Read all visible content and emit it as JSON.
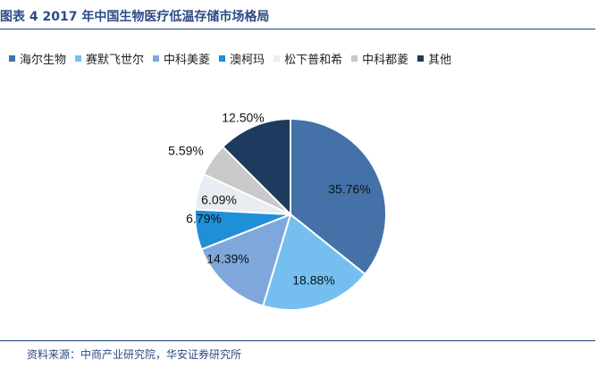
{
  "header": {
    "title": "图表 4 2017 年中国生物医疗低温存储市场格局"
  },
  "footer": {
    "source": "资料来源：中商产业研究院，华安证券研究所"
  },
  "chart_data": {
    "type": "pie",
    "legend_position": "top",
    "start": "12 o'clock",
    "direction": "clockwise",
    "slices": [
      {
        "name": "海尔生物",
        "value": 35.76,
        "label": "35.76%",
        "color": "#4472a8"
      },
      {
        "name": "赛默飞世尔",
        "value": 18.88,
        "label": "18.88%",
        "color": "#74bff0"
      },
      {
        "name": "中科美菱",
        "value": 14.39,
        "label": "14.39%",
        "color": "#7fa7dc"
      },
      {
        "name": "澳柯玛",
        "value": 6.79,
        "label": "6.79%",
        "color": "#1f8fd8"
      },
      {
        "name": "松下普和希",
        "value": 6.09,
        "label": "6.09%",
        "color": "#e7edf2"
      },
      {
        "name": "中科都菱",
        "value": 5.59,
        "label": "5.59%",
        "color": "#c9c9c9"
      },
      {
        "name": "其他",
        "value": 12.5,
        "label": "12.50%",
        "color": "#1f3a5f"
      }
    ]
  }
}
